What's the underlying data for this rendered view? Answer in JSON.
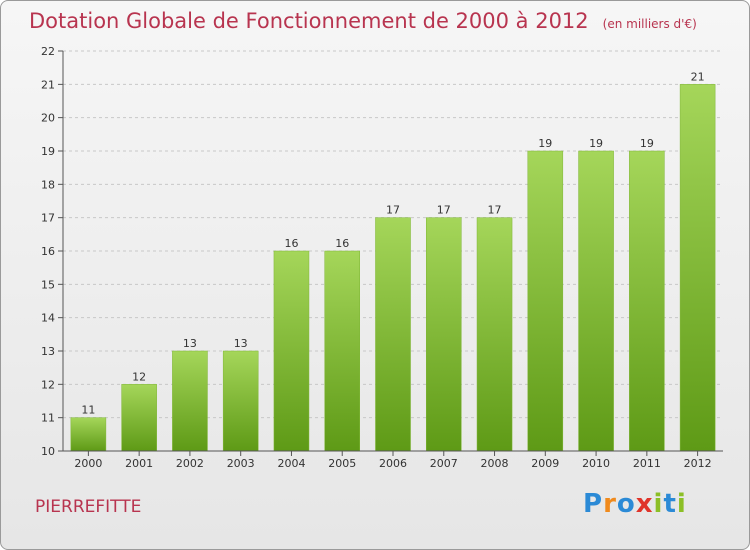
{
  "header": {
    "title": "Dotation Globale de Fonctionnement de 2000 à 2012",
    "unit": "(en milliers d'€)"
  },
  "footer": {
    "place": "PIERREFITTE",
    "logo_letters": [
      "P",
      "r",
      "o",
      "x",
      "i",
      "t",
      "i"
    ],
    "logo_colors": [
      "#2b8ad6",
      "#f08a1c",
      "#2b8ad6",
      "#e0342a",
      "#8cbf26",
      "#2b8ad6",
      "#8cbf26"
    ]
  },
  "chart_data": {
    "type": "bar",
    "title": "Dotation Globale de Fonctionnement de 2000 à 2012",
    "xlabel": "",
    "ylabel": "",
    "categories": [
      "2000",
      "2001",
      "2002",
      "2003",
      "2004",
      "2005",
      "2006",
      "2007",
      "2008",
      "2009",
      "2010",
      "2011",
      "2012"
    ],
    "values": [
      11,
      12,
      13,
      13,
      16,
      16,
      17,
      17,
      17,
      19,
      19,
      19,
      21
    ],
    "ylim": [
      10,
      22
    ],
    "yticks": [
      10,
      11,
      12,
      13,
      14,
      15,
      16,
      17,
      18,
      19,
      20,
      21,
      22
    ],
    "grid": true,
    "bar_color_top": "#a5d65a",
    "bar_color_bottom": "#5e9a16",
    "grid_color": "#c8c8c8"
  }
}
